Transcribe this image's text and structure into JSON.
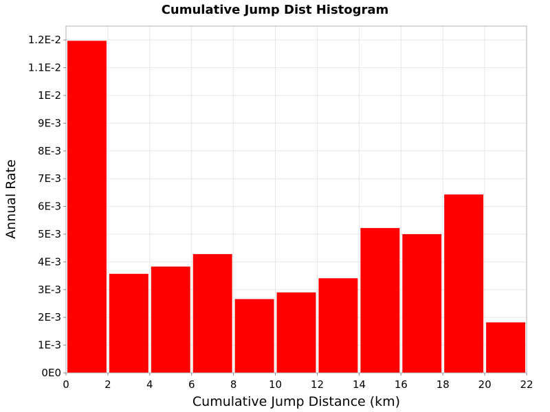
{
  "chart_data": {
    "type": "bar",
    "title": "Cumulative Jump Dist Histogram",
    "xlabel": "Cumulative Jump Distance (km)",
    "ylabel": "Annual Rate",
    "xlim": [
      0,
      22
    ],
    "ylim": [
      0,
      0.0125
    ],
    "bin_width": 2,
    "x": [
      1,
      3,
      5,
      7,
      9,
      11,
      13,
      15,
      17,
      19,
      21
    ],
    "values": [
      0.01197,
      0.00357,
      0.00383,
      0.00428,
      0.00266,
      0.0029,
      0.00341,
      0.00522,
      0.005,
      0.00643,
      0.00182
    ],
    "x_ticks": [
      0,
      2,
      4,
      6,
      8,
      10,
      12,
      14,
      16,
      18,
      20,
      22
    ],
    "x_tick_labels": [
      "0",
      "2",
      "4",
      "6",
      "8",
      "10",
      "12",
      "14",
      "16",
      "18",
      "20",
      "22"
    ],
    "y_ticks": [
      0,
      0.001,
      0.002,
      0.003,
      0.004,
      0.005,
      0.006,
      0.007,
      0.008,
      0.009,
      0.01,
      0.011,
      0.012
    ],
    "y_tick_labels": [
      "0E0",
      "1E-3",
      "2E-3",
      "3E-3",
      "4E-3",
      "5E-3",
      "6E-3",
      "7E-3",
      "8E-3",
      "9E-3",
      "1E-2",
      "1.1E-2",
      "1.2E-2"
    ],
    "grid": true,
    "bar_color": "#ff0000",
    "grid_color": "#e6e6e6"
  }
}
